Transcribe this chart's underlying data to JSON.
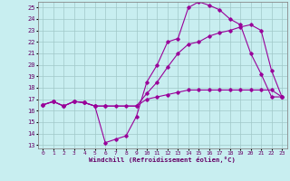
{
  "xlabel": "Windchill (Refroidissement éolien,°C)",
  "background_color": "#c8eef0",
  "grid_color": "#a0c8c8",
  "line_color": "#990099",
  "xmin": 0,
  "xmax": 23,
  "ymin": 13,
  "ymax": 25,
  "yticks": [
    13,
    14,
    15,
    16,
    17,
    18,
    19,
    20,
    21,
    22,
    23,
    24,
    25
  ],
  "xticks": [
    0,
    1,
    2,
    3,
    4,
    5,
    6,
    7,
    8,
    9,
    10,
    11,
    12,
    13,
    14,
    15,
    16,
    17,
    18,
    19,
    20,
    21,
    22,
    23
  ],
  "line1_x": [
    0,
    1,
    2,
    3,
    4,
    5,
    6,
    7,
    8,
    9,
    10,
    11,
    12,
    13,
    14,
    15,
    16,
    17,
    18,
    19,
    20,
    21,
    22,
    23
  ],
  "line1_y": [
    16.5,
    16.8,
    16.4,
    16.8,
    16.7,
    16.4,
    13.2,
    13.5,
    13.8,
    15.5,
    18.5,
    20.0,
    22.0,
    22.3,
    25.0,
    25.5,
    25.2,
    24.8,
    24.0,
    23.5,
    21.0,
    19.2,
    17.2,
    17.2
  ],
  "line2_x": [
    0,
    1,
    2,
    3,
    4,
    5,
    6,
    7,
    8,
    9,
    10,
    11,
    12,
    13,
    14,
    15,
    16,
    17,
    18,
    19,
    20,
    21,
    22,
    23
  ],
  "line2_y": [
    16.5,
    16.8,
    16.4,
    16.8,
    16.7,
    16.4,
    16.4,
    16.4,
    16.4,
    16.4,
    17.5,
    18.5,
    19.8,
    21.0,
    21.8,
    22.0,
    22.5,
    22.8,
    23.0,
    23.3,
    23.5,
    23.0,
    19.5,
    17.2
  ],
  "line3_x": [
    0,
    1,
    2,
    3,
    4,
    5,
    6,
    9,
    10,
    11,
    12,
    13,
    14,
    15,
    16,
    17,
    18,
    19,
    20,
    21,
    22,
    23
  ],
  "line3_y": [
    16.5,
    16.8,
    16.4,
    16.8,
    16.7,
    16.4,
    16.4,
    16.4,
    17.0,
    17.2,
    17.4,
    17.6,
    17.8,
    17.8,
    17.8,
    17.8,
    17.8,
    17.8,
    17.8,
    17.8,
    17.8,
    17.2
  ]
}
